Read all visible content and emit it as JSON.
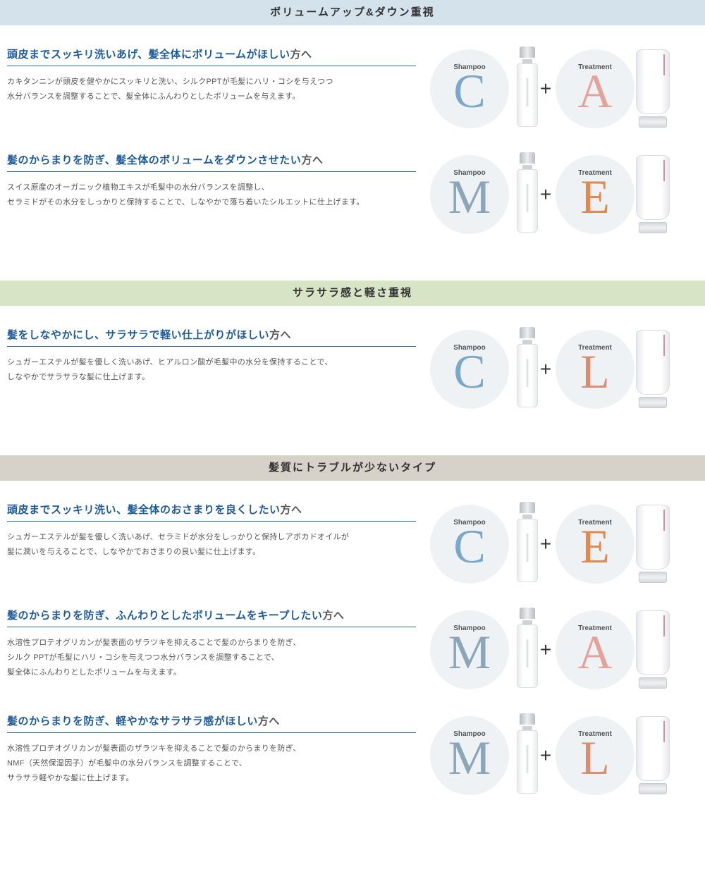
{
  "labels": {
    "shampoo": "Shampoo",
    "treatment": "Treatment",
    "plus": "+"
  },
  "letter_colors": {
    "C": "#7ba8c9",
    "M": "#8aa6b8",
    "A": "#e3a39a",
    "E": "#e08a4f",
    "L": "#d88f70"
  },
  "bubble_bg": "#eef2f5",
  "sections": [
    {
      "header": "ボリュームアップ&ダウン重視",
      "header_bg": "#d4e2ec",
      "items": [
        {
          "title_emph": "頭皮までスッキリ洗いあげ、髪全体にボリュームがほしい",
          "title_tail": "方へ",
          "desc": "カキタンニンが頭皮を健やかにスッキリと洗い、シルクPPTが毛髪にハリ・コシを与えつつ\n水分バランスを調整することで、髪全体にふんわりとしたボリュームを与えます。",
          "shampoo": "C",
          "treatment": "A"
        },
        {
          "title_emph": "髪のからまりを防ぎ、髪全体のボリュームをダウンさせたい",
          "title_tail": "方へ",
          "desc": "スイス原産のオーガニック植物エキスが毛髪中の水分バランスを調整し、\nセラミドがその水分をしっかりと保持することで、しなやかで落ち着いたシルエットに仕上げます。",
          "shampoo": "M",
          "treatment": "E"
        }
      ]
    },
    {
      "header": "サラサラ感と軽さ重視",
      "header_bg": "#d7e4c6",
      "items": [
        {
          "title_emph": "髪をしなやかにし、サラサラで軽い仕上がりがほしい",
          "title_tail": "方へ",
          "desc": "シュガーエステルが髪を優しく洗いあげ、ヒアルロン酸が毛髪中の水分を保持することで、\nしなやかでサラサラな髪に仕上げます。",
          "shampoo": "C",
          "treatment": "L"
        }
      ]
    },
    {
      "header": "髪質にトラブルが少ないタイプ",
      "header_bg": "#d6d2c9",
      "items": [
        {
          "title_emph": "頭皮までスッキリ洗い、髪全体のおさまりを良くしたい",
          "title_tail": "方へ",
          "desc": "シュガーエステルが髪を優しく洗いあげ、セラミドが水分をしっかりと保持しアボカドオイルが\n髪に潤いを与えることで、しなやかでおさまりの良い髪に仕上げます。",
          "shampoo": "C",
          "treatment": "E"
        },
        {
          "title_emph": "髪のからまりを防ぎ、ふんわりとしたボリュームをキープしたい",
          "title_tail": "方へ",
          "desc": "水溶性プロテオグリカンが髪表面のザラツキを抑えることで髪のからまりを防ぎ、\nシルク PPTが毛髪にハリ・コシを与えつつ水分バランスを調整することで、\n髪全体にふんわりとしたボリュームを与えます。",
          "shampoo": "M",
          "treatment": "A"
        },
        {
          "title_emph": "髪のからまりを防ぎ、軽やかなサラサラ感がほしい",
          "title_tail": "方へ",
          "desc": "水溶性プロテオグリカンが髪表面のザラツキを抑えることで髪のからまりを防ぎ、\nNMF（天然保湿因子）が毛髪中の水分バランスを調整することで、\nサラサラ軽やかな髪に仕上げます。",
          "shampoo": "M",
          "treatment": "L"
        }
      ]
    }
  ]
}
